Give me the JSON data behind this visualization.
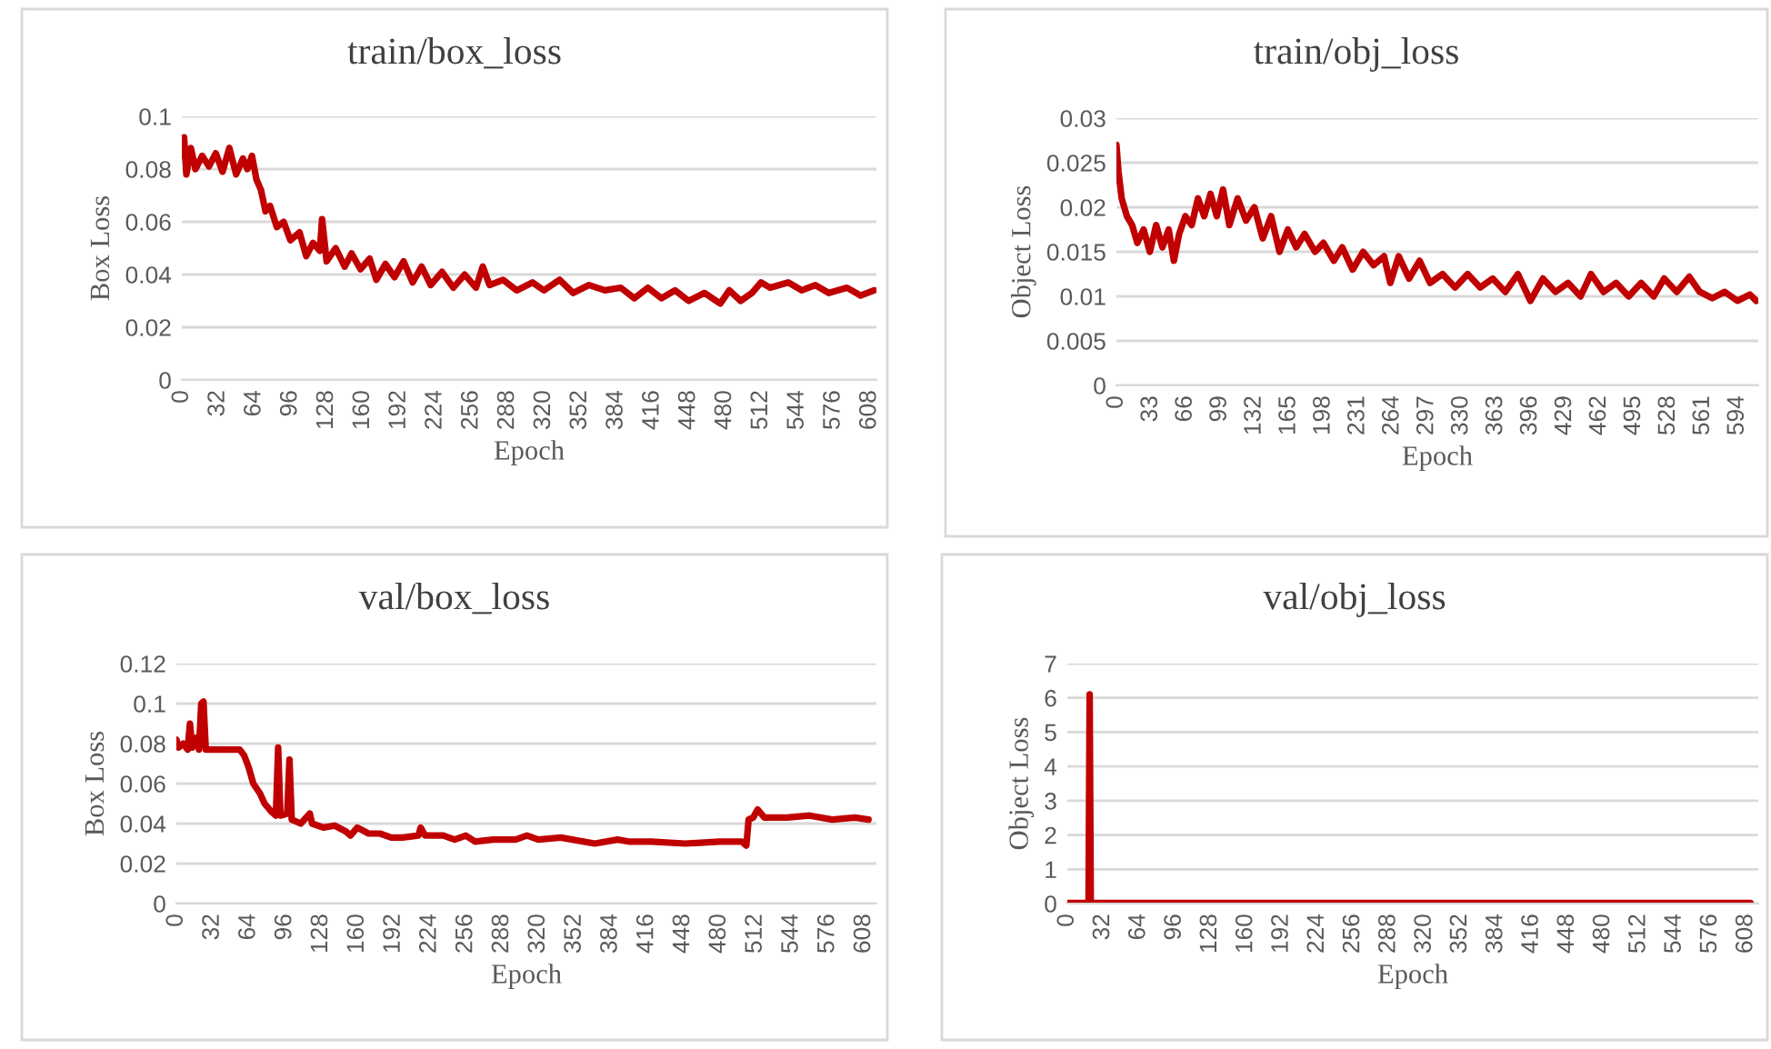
{
  "chart_data": [
    {
      "type": "line",
      "title": "train/box_loss",
      "xlabel": "Epoch",
      "ylabel": "Box Loss",
      "xlim": [
        0,
        614
      ],
      "xticks": [
        0,
        32,
        64,
        96,
        128,
        160,
        192,
        224,
        256,
        288,
        320,
        352,
        384,
        416,
        448,
        480,
        512,
        544,
        576,
        608
      ],
      "ylim": [
        0,
        0.1
      ],
      "yticks": [
        0,
        0.02,
        0.04,
        0.06,
        0.08,
        0.1
      ],
      "grid": "y",
      "series": [
        {
          "color": "#c00000",
          "x": [
            0,
            2,
            4,
            8,
            12,
            18,
            24,
            30,
            36,
            42,
            48,
            54,
            58,
            62,
            66,
            70,
            74,
            78,
            84,
            90,
            96,
            104,
            110,
            116,
            122,
            124,
            128,
            136,
            144,
            150,
            158,
            166,
            172,
            180,
            188,
            196,
            204,
            212,
            220,
            230,
            240,
            250,
            260,
            266,
            272,
            284,
            296,
            310,
            320,
            334,
            346,
            360,
            374,
            388,
            400,
            412,
            424,
            436,
            448,
            462,
            476,
            484,
            494,
            504,
            512,
            520,
            536,
            548,
            560,
            572,
            588,
            600,
            612
          ],
          "values": [
            0.085,
            0.092,
            0.078,
            0.088,
            0.08,
            0.085,
            0.081,
            0.086,
            0.079,
            0.088,
            0.078,
            0.084,
            0.08,
            0.085,
            0.076,
            0.072,
            0.064,
            0.066,
            0.058,
            0.06,
            0.053,
            0.056,
            0.047,
            0.052,
            0.049,
            0.061,
            0.045,
            0.05,
            0.043,
            0.048,
            0.042,
            0.046,
            0.038,
            0.044,
            0.039,
            0.045,
            0.037,
            0.043,
            0.036,
            0.041,
            0.035,
            0.04,
            0.035,
            0.043,
            0.036,
            0.038,
            0.034,
            0.037,
            0.034,
            0.038,
            0.033,
            0.036,
            0.034,
            0.035,
            0.031,
            0.035,
            0.031,
            0.034,
            0.03,
            0.033,
            0.029,
            0.034,
            0.03,
            0.033,
            0.037,
            0.035,
            0.037,
            0.034,
            0.036,
            0.033,
            0.035,
            0.032,
            0.034
          ]
        }
      ]
    },
    {
      "type": "line",
      "title": "train/obj_loss",
      "xlabel": "Epoch",
      "ylabel": "Object Loss",
      "xlim": [
        0,
        614
      ],
      "xticks": [
        0,
        33,
        66,
        99,
        132,
        165,
        198,
        231,
        264,
        297,
        330,
        363,
        396,
        429,
        462,
        495,
        528,
        561,
        594
      ],
      "ylim": [
        0,
        0.03
      ],
      "yticks": [
        0,
        0.005,
        0.01,
        0.015,
        0.02,
        0.025,
        0.03
      ],
      "grid": "y",
      "series": [
        {
          "color": "#c00000",
          "x": [
            0,
            2,
            5,
            10,
            15,
            20,
            26,
            32,
            38,
            44,
            50,
            55,
            60,
            66,
            72,
            78,
            84,
            90,
            96,
            102,
            108,
            116,
            124,
            132,
            140,
            148,
            156,
            164,
            172,
            180,
            190,
            198,
            208,
            216,
            226,
            236,
            246,
            256,
            262,
            270,
            280,
            290,
            300,
            312,
            324,
            336,
            348,
            360,
            372,
            384,
            396,
            408,
            420,
            432,
            444,
            454,
            466,
            478,
            490,
            502,
            514,
            524,
            536,
            548,
            558,
            570,
            582,
            594,
            606,
            612
          ],
          "values": [
            0.027,
            0.024,
            0.021,
            0.019,
            0.018,
            0.016,
            0.0175,
            0.015,
            0.018,
            0.0155,
            0.0175,
            0.014,
            0.017,
            0.019,
            0.018,
            0.021,
            0.019,
            0.0215,
            0.019,
            0.022,
            0.018,
            0.021,
            0.0185,
            0.02,
            0.0165,
            0.019,
            0.015,
            0.0175,
            0.0155,
            0.017,
            0.015,
            0.016,
            0.014,
            0.0155,
            0.013,
            0.015,
            0.0135,
            0.0145,
            0.0115,
            0.0145,
            0.012,
            0.014,
            0.0115,
            0.0125,
            0.011,
            0.0125,
            0.011,
            0.012,
            0.0105,
            0.0125,
            0.0095,
            0.012,
            0.0105,
            0.0115,
            0.01,
            0.0125,
            0.0105,
            0.0115,
            0.01,
            0.0115,
            0.01,
            0.012,
            0.0105,
            0.0122,
            0.0105,
            0.0098,
            0.0105,
            0.0095,
            0.0102,
            0.0095
          ]
        }
      ]
    },
    {
      "type": "line",
      "title": "val/box_loss",
      "xlabel": "Epoch",
      "ylabel": "Box Loss",
      "xlim": [
        0,
        619
      ],
      "xticks": [
        0,
        32,
        64,
        96,
        128,
        160,
        192,
        224,
        256,
        288,
        320,
        352,
        384,
        416,
        448,
        480,
        512,
        544,
        576,
        608
      ],
      "ylim": [
        0,
        0.12
      ],
      "yticks": [
        0,
        0.02,
        0.04,
        0.06,
        0.08,
        0.1,
        0.12
      ],
      "grid": "y",
      "series": [
        {
          "color": "#c00000",
          "x": [
            0,
            2,
            6,
            10,
            12,
            14,
            18,
            20,
            22,
            24,
            26,
            40,
            56,
            60,
            64,
            68,
            74,
            78,
            84,
            88,
            90,
            92,
            98,
            100,
            102,
            110,
            118,
            120,
            130,
            140,
            150,
            154,
            160,
            170,
            180,
            190,
            200,
            214,
            216,
            220,
            236,
            246,
            256,
            264,
            280,
            300,
            310,
            320,
            340,
            350,
            370,
            390,
            400,
            420,
            450,
            480,
            500,
            504,
            506,
            510,
            514,
            520,
            540,
            560,
            580,
            600,
            612
          ],
          "values": [
            0.082,
            0.078,
            0.08,
            0.077,
            0.09,
            0.078,
            0.083,
            0.077,
            0.1,
            0.101,
            0.077,
            0.077,
            0.077,
            0.074,
            0.068,
            0.06,
            0.055,
            0.05,
            0.046,
            0.044,
            0.078,
            0.044,
            0.045,
            0.072,
            0.042,
            0.04,
            0.045,
            0.04,
            0.038,
            0.039,
            0.036,
            0.034,
            0.038,
            0.035,
            0.035,
            0.033,
            0.033,
            0.034,
            0.038,
            0.034,
            0.034,
            0.032,
            0.034,
            0.031,
            0.032,
            0.032,
            0.034,
            0.032,
            0.033,
            0.032,
            0.03,
            0.032,
            0.031,
            0.031,
            0.03,
            0.031,
            0.031,
            0.029,
            0.042,
            0.043,
            0.047,
            0.043,
            0.043,
            0.044,
            0.042,
            0.043,
            0.042
          ]
        }
      ]
    },
    {
      "type": "line",
      "title": "val/obj_loss",
      "xlabel": "Epoch",
      "ylabel": "Object Loss",
      "xlim": [
        0,
        619
      ],
      "xticks": [
        0,
        32,
        64,
        96,
        128,
        160,
        192,
        224,
        256,
        288,
        320,
        352,
        384,
        416,
        448,
        480,
        512,
        544,
        576,
        608
      ],
      "ylim": [
        0,
        7
      ],
      "yticks": [
        0,
        1,
        2,
        3,
        4,
        5,
        6,
        7
      ],
      "grid": "y",
      "series": [
        {
          "color": "#c00000",
          "x": [
            0,
            19,
            20,
            21,
            100,
            200,
            300,
            400,
            500,
            612
          ],
          "values": [
            0.02,
            0.02,
            6.1,
            0.02,
            0.02,
            0.02,
            0.02,
            0.02,
            0.02,
            0.02
          ]
        }
      ]
    }
  ]
}
